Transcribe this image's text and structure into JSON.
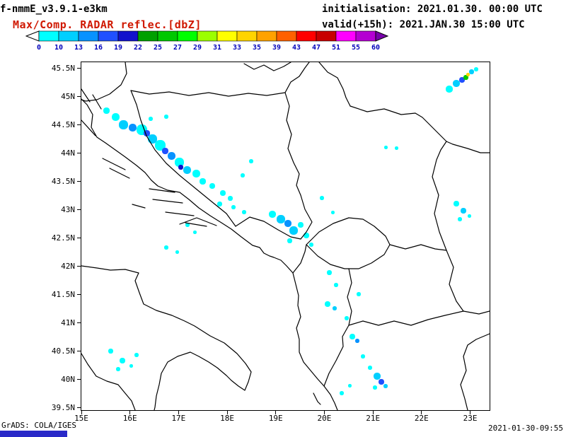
{
  "header": {
    "model_label": "f-nmmE_v3.9.1-e3km",
    "product_label": "Max/Comp. RADAR reflec.[dbZ]",
    "product_color": "#d01800",
    "init_label": "initialisation: 2021.01.30. 00:00 UTC",
    "valid_label": "valid(+15h): 2021.JAN.30 15:00 UTC"
  },
  "colorbar": {
    "unit": "dbZ",
    "tick_labels": [
      "0",
      "10",
      "13",
      "16",
      "19",
      "22",
      "25",
      "27",
      "29",
      "31",
      "33",
      "35",
      "39",
      "43",
      "47",
      "51",
      "55",
      "60"
    ],
    "thresholds": [
      0,
      10,
      13,
      16,
      19,
      22,
      25,
      27,
      29,
      31,
      33,
      35,
      39,
      43,
      47,
      51,
      55,
      60
    ],
    "colors": [
      "#00ffff",
      "#00cfff",
      "#0892ff",
      "#2050ff",
      "#1212cc",
      "#00a000",
      "#00c800",
      "#00ff00",
      "#9cff00",
      "#ffff00",
      "#ffd400",
      "#ffa200",
      "#ff6000",
      "#ff0000",
      "#c80000",
      "#ff00ff",
      "#b400d2"
    ],
    "under_color": "#ffffff",
    "over_color": "#7800aa",
    "label_color": "#0000bb"
  },
  "map": {
    "extent": {
      "lon_min": 15,
      "lon_max": 23.4,
      "lat_min": 39.45,
      "lat_max": 45.6
    },
    "x_ticks": [
      {
        "label": "15E",
        "lon": 15
      },
      {
        "label": "16E",
        "lon": 16
      },
      {
        "label": "17E",
        "lon": 17
      },
      {
        "label": "18E",
        "lon": 18
      },
      {
        "label": "19E",
        "lon": 19
      },
      {
        "label": "20E",
        "lon": 20
      },
      {
        "label": "21E",
        "lon": 21
      },
      {
        "label": "22E",
        "lon": 22
      },
      {
        "label": "23E",
        "lon": 23
      }
    ],
    "y_ticks": [
      {
        "label": "45.5N",
        "lat": 45.5
      },
      {
        "label": "45N",
        "lat": 45.0
      },
      {
        "label": "44.5N",
        "lat": 44.5
      },
      {
        "label": "44N",
        "lat": 44.0
      },
      {
        "label": "43.5N",
        "lat": 43.5
      },
      {
        "label": "43N",
        "lat": 43.0
      },
      {
        "label": "42.5N",
        "lat": 42.5
      },
      {
        "label": "42N",
        "lat": 42.0
      },
      {
        "label": "41.5N",
        "lat": 41.5
      },
      {
        "label": "41N",
        "lat": 41.0
      },
      {
        "label": "40.5N",
        "lat": 40.5
      },
      {
        "label": "40N",
        "lat": 40.0
      },
      {
        "label": "39.5N",
        "lat": 39.5
      }
    ]
  },
  "radar_echoes": {
    "format": [
      "lon",
      "lat",
      "dbz",
      "size_px"
    ],
    "points": [
      [
        15.51,
        44.75,
        8,
        9
      ],
      [
        15.7,
        44.63,
        8,
        11
      ],
      [
        15.87,
        44.5,
        11,
        13
      ],
      [
        16.05,
        44.45,
        14,
        11
      ],
      [
        16.24,
        44.41,
        8,
        15
      ],
      [
        16.34,
        44.35,
        17,
        9
      ],
      [
        16.46,
        44.25,
        11,
        13
      ],
      [
        16.63,
        44.13,
        8,
        15
      ],
      [
        16.72,
        44.03,
        17,
        9
      ],
      [
        16.86,
        43.95,
        14,
        11
      ],
      [
        17.01,
        43.83,
        8,
        13
      ],
      [
        17.04,
        43.75,
        20,
        7
      ],
      [
        17.18,
        43.7,
        11,
        11
      ],
      [
        17.36,
        43.63,
        8,
        11
      ],
      [
        17.5,
        43.5,
        8,
        9
      ],
      [
        17.69,
        43.41,
        8,
        8
      ],
      [
        17.91,
        43.29,
        8,
        8
      ],
      [
        18.06,
        43.2,
        8,
        7
      ],
      [
        16.43,
        44.6,
        8,
        6
      ],
      [
        16.75,
        44.64,
        8,
        6
      ],
      [
        17.84,
        43.1,
        8,
        7
      ],
      [
        18.13,
        43.04,
        8,
        6
      ],
      [
        18.35,
        42.95,
        8,
        6
      ],
      [
        18.49,
        43.85,
        8,
        6
      ],
      [
        18.32,
        43.6,
        8,
        6
      ],
      [
        19.95,
        43.2,
        8,
        6
      ],
      [
        20.17,
        42.95,
        8,
        5
      ],
      [
        21.48,
        44.08,
        8,
        5
      ],
      [
        16.75,
        42.33,
        8,
        6
      ],
      [
        16.97,
        42.25,
        8,
        5
      ],
      [
        17.18,
        42.73,
        8,
        6
      ],
      [
        17.33,
        42.6,
        8,
        5
      ],
      [
        18.93,
        42.91,
        8,
        10
      ],
      [
        19.11,
        42.83,
        11,
        12
      ],
      [
        19.25,
        42.75,
        14,
        10
      ],
      [
        19.37,
        42.63,
        11,
        12
      ],
      [
        19.51,
        42.73,
        8,
        8
      ],
      [
        19.63,
        42.54,
        8,
        8
      ],
      [
        19.29,
        42.45,
        8,
        7
      ],
      [
        19.73,
        42.38,
        8,
        6
      ],
      [
        21.26,
        44.1,
        8,
        5
      ],
      [
        22.72,
        43.1,
        8,
        8
      ],
      [
        22.86,
        42.98,
        11,
        8
      ],
      [
        22.79,
        42.83,
        8,
        6
      ],
      [
        22.98,
        42.88,
        8,
        5
      ],
      [
        22.57,
        45.13,
        8,
        10
      ],
      [
        22.72,
        45.23,
        11,
        10
      ],
      [
        22.83,
        45.29,
        17,
        8
      ],
      [
        22.91,
        45.33,
        26,
        7
      ],
      [
        22.96,
        45.38,
        33,
        5
      ],
      [
        23.03,
        45.43,
        11,
        7
      ],
      [
        23.12,
        45.48,
        8,
        6
      ],
      [
        20.1,
        41.88,
        8,
        7
      ],
      [
        20.24,
        41.66,
        8,
        6
      ],
      [
        20.07,
        41.33,
        8,
        8
      ],
      [
        20.21,
        41.25,
        11,
        6
      ],
      [
        20.71,
        41.5,
        8,
        6
      ],
      [
        20.46,
        41.08,
        8,
        6
      ],
      [
        20.58,
        40.75,
        8,
        8
      ],
      [
        20.68,
        40.68,
        14,
        6
      ],
      [
        20.79,
        40.4,
        8,
        6
      ],
      [
        20.94,
        40.2,
        8,
        6
      ],
      [
        21.09,
        40.05,
        11,
        10
      ],
      [
        21.17,
        39.95,
        17,
        8
      ],
      [
        21.26,
        39.88,
        11,
        6
      ],
      [
        21.04,
        39.85,
        8,
        6
      ],
      [
        20.36,
        39.75,
        8,
        6
      ],
      [
        20.53,
        39.88,
        8,
        5
      ],
      [
        15.61,
        40.5,
        8,
        7
      ],
      [
        15.84,
        40.33,
        8,
        8
      ],
      [
        16.14,
        40.43,
        8,
        6
      ],
      [
        15.76,
        40.18,
        8,
        6
      ],
      [
        16.02,
        40.23,
        8,
        5
      ]
    ]
  },
  "footer": {
    "credit": "GrADS: COLA/IGES",
    "timestamp": "2021-01-30-09:55",
    "bar_color": "#2929c8"
  }
}
